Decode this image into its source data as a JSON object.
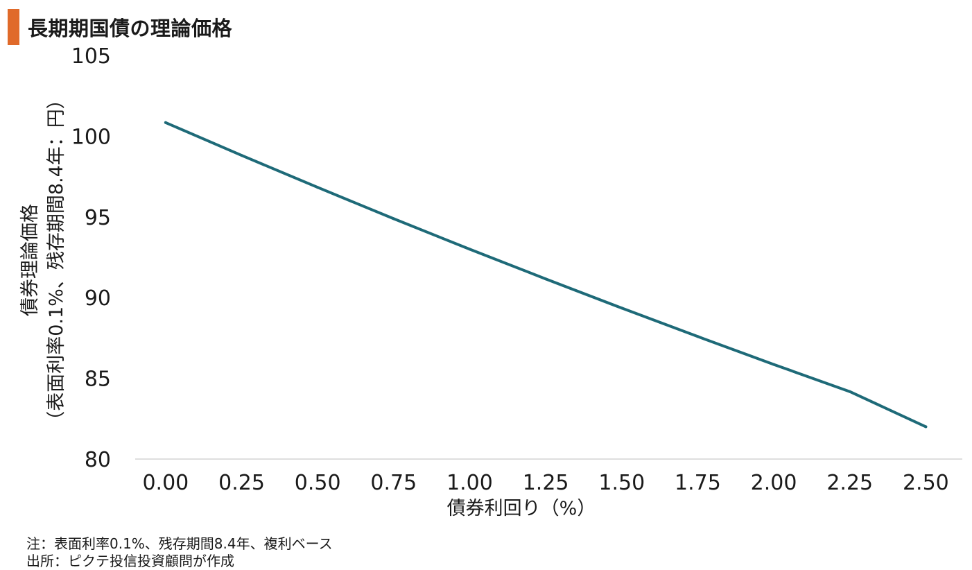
{
  "page": {
    "title": "長期期国債の理論価格",
    "accent_color": "#e06a2a",
    "notes": [
      "注：表面利率0.1%、残存期間8.4年、複利ベース",
      "出所：ピクテ投信投資顧問が作成"
    ]
  },
  "chart_data": {
    "type": "line",
    "title": "長期期国債の理論価格",
    "xlabel": "債券利回り（%）",
    "ylabel_line1": "債券理論価格",
    "ylabel_line2": "（表面利率0.1%、残存期間8.4年：円）",
    "x_ticks": [
      "0.00",
      "0.25",
      "0.50",
      "0.75",
      "1.00",
      "1.25",
      "1.50",
      "1.75",
      "2.00",
      "2.25",
      "2.50"
    ],
    "y_ticks": [
      "80",
      "85",
      "90",
      "95",
      "100",
      "105"
    ],
    "xlim": [
      -0.1,
      2.62
    ],
    "ylim": [
      80,
      105
    ],
    "grid": false,
    "line_color": "#1e6a78",
    "series": [
      {
        "x": [
          0.0,
          0.25,
          0.5,
          0.75,
          1.0,
          1.25,
          1.5,
          1.75,
          2.0,
          2.25,
          2.5
        ],
        "values": [
          100.84,
          98.81,
          96.83,
          94.89,
          93.0,
          91.16,
          89.35,
          87.59,
          85.86,
          84.18,
          82.0
        ]
      }
    ]
  }
}
